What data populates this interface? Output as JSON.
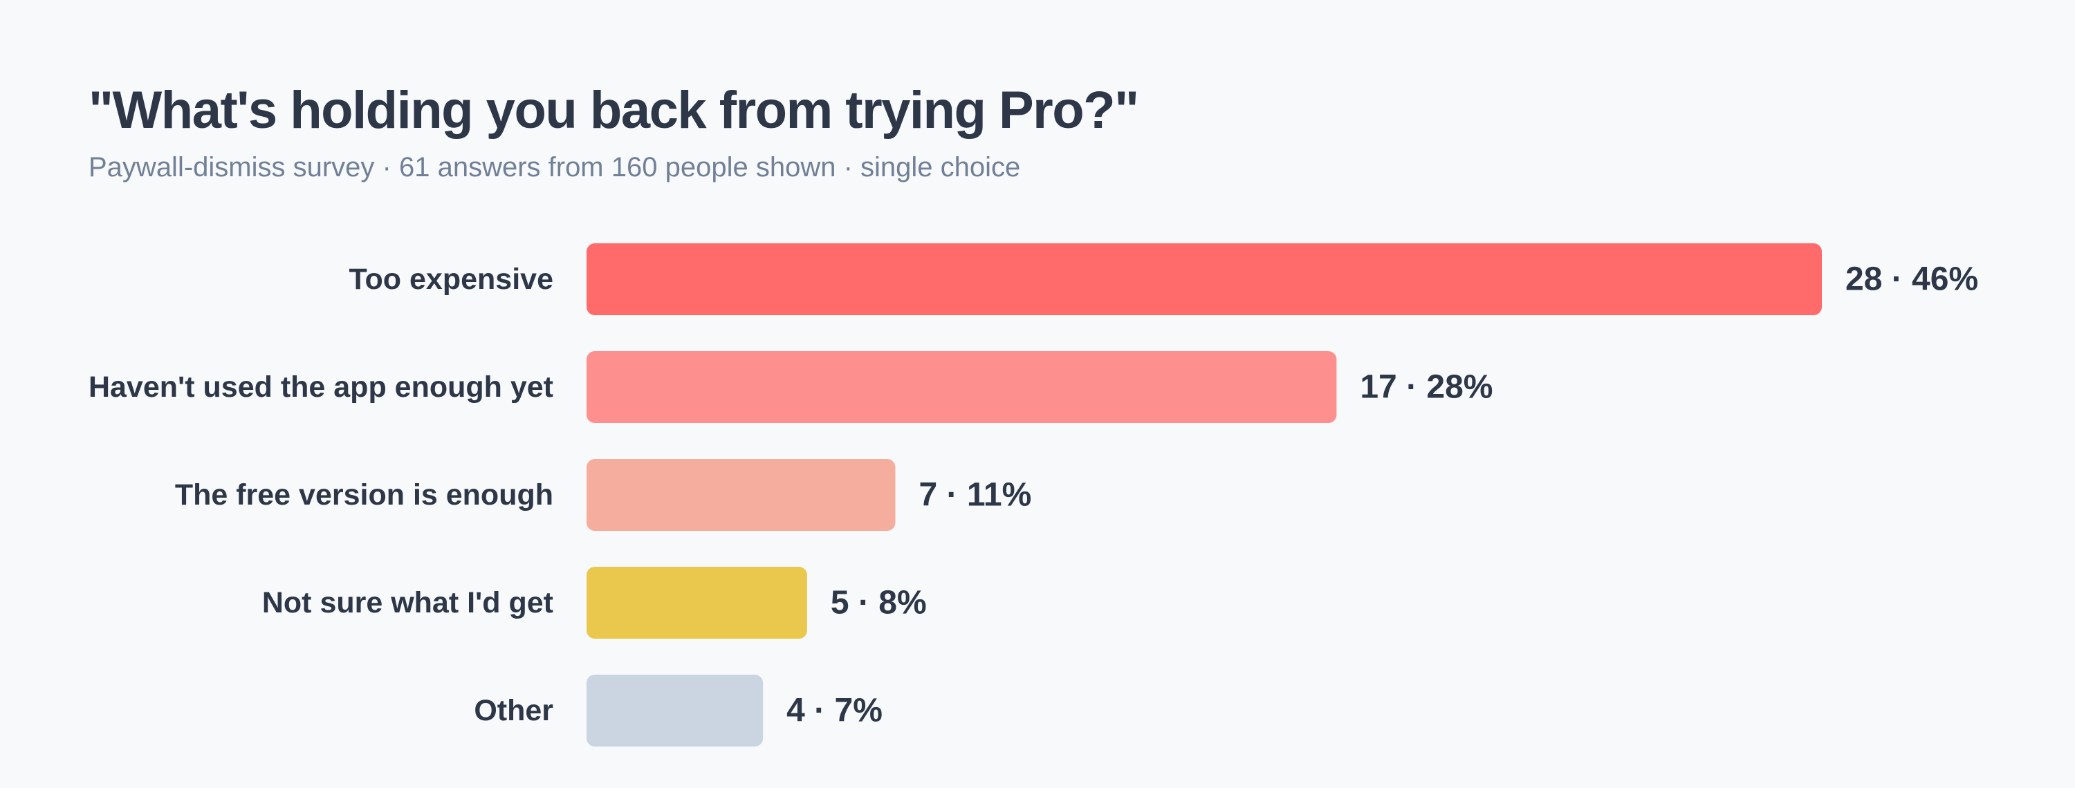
{
  "header": {
    "title": "\"What's holding you back from trying Pro?\"",
    "subtitle": "Paywall-dismiss survey · 61 answers from 160 people shown · single choice"
  },
  "chart_data": {
    "type": "bar",
    "orientation": "horizontal",
    "title": "\"What's holding you back from trying Pro?\"",
    "subtitle": "Paywall-dismiss survey · 61 answers from 160 people shown · single choice",
    "categories": [
      "Too expensive",
      "Haven't used the app enough yet",
      "The free version is enough",
      "Not sure what I'd get",
      "Other"
    ],
    "values": [
      28,
      17,
      7,
      5,
      4
    ],
    "percentages": [
      46,
      28,
      11,
      8,
      7
    ],
    "value_labels": [
      "28 · 46%",
      "17 · 28%",
      "7 · 11%",
      "5 · 8%",
      "4 · 7%"
    ],
    "colors": [
      "#ff6b6b",
      "#fd8f8f",
      "#f5ad9e",
      "#e9c84d",
      "#cbd5e1"
    ],
    "xlabel": "",
    "ylabel": "",
    "grid": false,
    "legend": "none"
  }
}
